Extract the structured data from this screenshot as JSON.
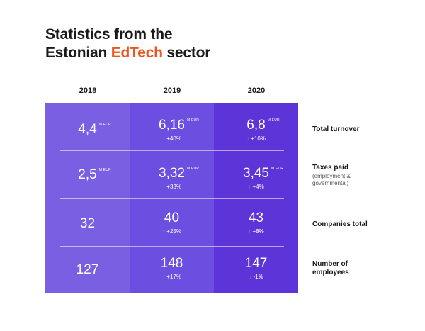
{
  "title": {
    "line1": "Statistics from the",
    "line2_before": "Estonian ",
    "line2_accent": "EdTech",
    "line2_after": " sector"
  },
  "colors": {
    "accent": "#f0541e",
    "col_2018": "#7a5fe3",
    "col_2019": "#6c4ee0",
    "col_2020": "#5c34d7",
    "increase": "#3bd16f",
    "decrease": "#ff4b4b"
  },
  "years": [
    "2018",
    "2019",
    "2020"
  ],
  "rows": [
    {
      "label": "Total turnover",
      "sublabel": "",
      "cells": [
        {
          "value": "4,4",
          "unit": "M EUR",
          "change": ""
        },
        {
          "value": "6,16",
          "unit": "M EUR",
          "change": "+40%",
          "direction": "up"
        },
        {
          "value": "6,8",
          "unit": "M EUR",
          "change": "+10%",
          "direction": "up"
        }
      ]
    },
    {
      "label": "Taxes paid",
      "sublabel_line1": "(employment &",
      "sublabel_line2": "governmental)",
      "cells": [
        {
          "value": "2,5",
          "unit": "M EUR",
          "change": ""
        },
        {
          "value": "3,32",
          "unit": "M EUR",
          "change": "+33%",
          "direction": "up"
        },
        {
          "value": "3,45",
          "unit": "M EUR",
          "change": "+4%",
          "direction": "up"
        }
      ]
    },
    {
      "label": "Companies total",
      "sublabel": "",
      "cells": [
        {
          "value": "32",
          "unit": "",
          "change": ""
        },
        {
          "value": "40",
          "unit": "",
          "change": "+25%",
          "direction": "up"
        },
        {
          "value": "43",
          "unit": "",
          "change": "+8%",
          "direction": "up"
        }
      ]
    },
    {
      "label_line1": "Number of",
      "label_line2": "employees",
      "cells": [
        {
          "value": "127",
          "unit": "",
          "change": ""
        },
        {
          "value": "148",
          "unit": "",
          "change": "+17%",
          "direction": "up"
        },
        {
          "value": "147",
          "unit": "",
          "change": "-1%",
          "direction": "down"
        }
      ]
    }
  ],
  "icons": {
    "up": "arrow-up-icon",
    "down": "arrow-down-icon"
  }
}
